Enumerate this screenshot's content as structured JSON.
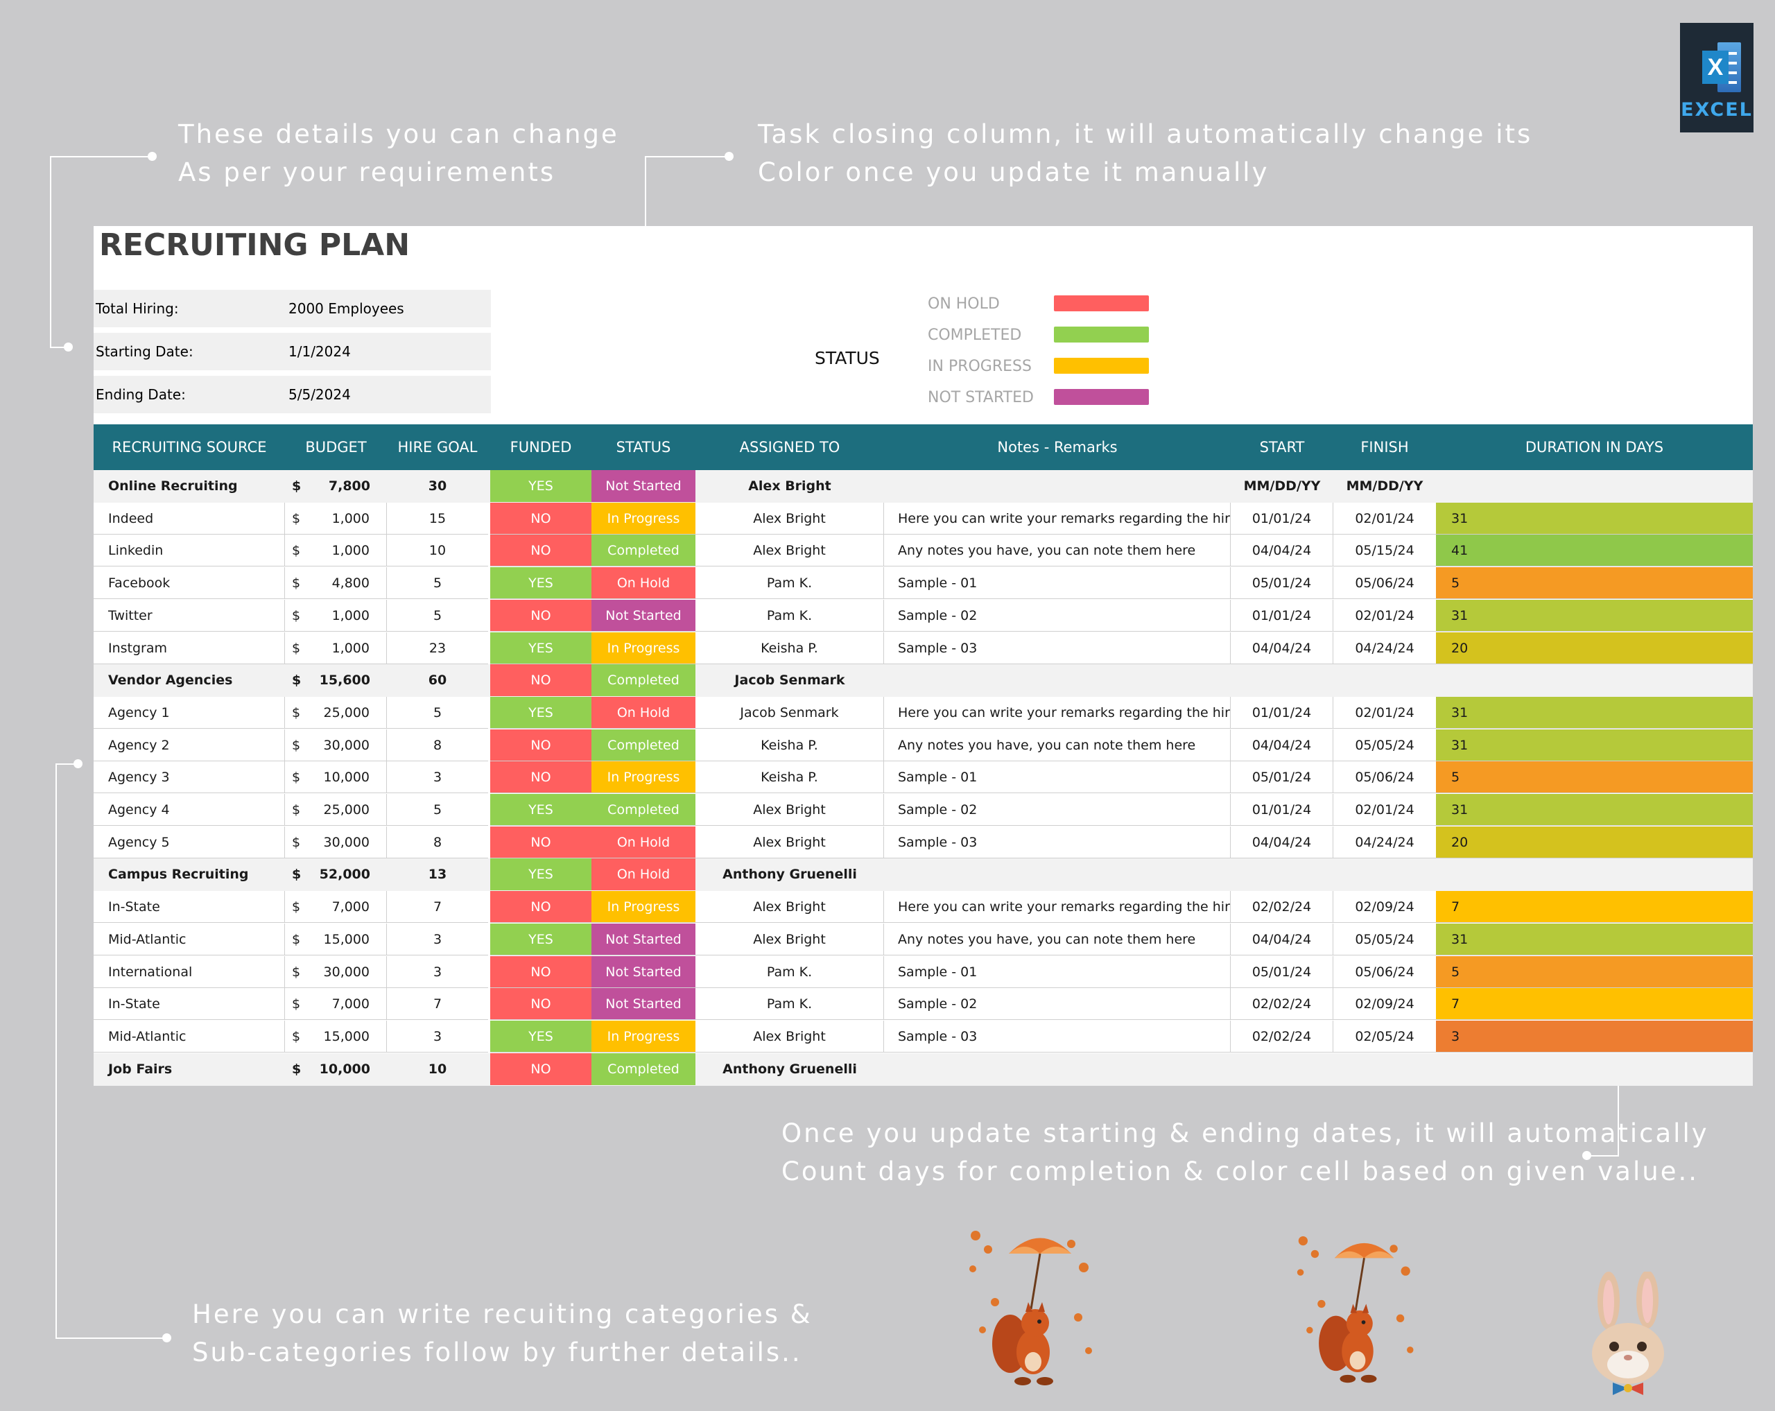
{
  "annotations": {
    "top_left": "These details you can change\nAs per your requirements",
    "top_right": "Task closing column, it will automatically change its\nColor once you update it manually",
    "bottom_right": "Once you update starting & ending dates, it will automatically\nCount days for completion & color cell based on given value..",
    "bottom_left": "Here you can write recuiting categories &\nSub-categories follow by further details.."
  },
  "logo": {
    "letter": "X",
    "label": "EXCEL",
    "icon": "excel-icon"
  },
  "sheet": {
    "title": "RECRUITING PLAN",
    "info": [
      {
        "label": "Total Hiring:",
        "value": "2000 Employees"
      },
      {
        "label": "Starting Date:",
        "value": "1/1/2024"
      },
      {
        "label": "Ending Date:",
        "value": "5/5/2024"
      }
    ],
    "status_title": "STATUS",
    "legend": [
      {
        "label": "ON HOLD",
        "color": "#ff5f5f"
      },
      {
        "label": "COMPLETED",
        "color": "#92d050"
      },
      {
        "label": "IN PROGRESS",
        "color": "#ffc000"
      },
      {
        "label": "NOT STARTED",
        "color": "#c0509b"
      }
    ]
  },
  "columns": {
    "source": "RECRUITING SOURCE",
    "budget": "BUDGET",
    "hire_goal": "HIRE GOAL",
    "funded": "FUNDED",
    "status": "STATUS",
    "assigned": "ASSIGNED TO",
    "notes": "Notes - Remarks",
    "start": "START",
    "finish": "FINISH",
    "duration": "DURATION IN DAYS"
  },
  "colors": {
    "header": "#1d6e7e",
    "funded_yes": "#92d050",
    "funded_no": "#ff5f5f",
    "status_text_dark": "#ffffff"
  },
  "rows": [
    {
      "type": "group",
      "source": "Online Recruiting",
      "dollar": "$",
      "budget": "7,800",
      "hire_goal": "30",
      "funded": "YES",
      "status": "Not Started",
      "assigned": "Alex Bright",
      "notes": "",
      "start": "MM/DD/YY",
      "finish": "MM/DD/YY",
      "duration": ""
    },
    {
      "type": "sub",
      "source": "Indeed",
      "dollar": "$",
      "budget": "1,000",
      "hire_goal": "15",
      "funded": "NO",
      "status": "In Progress",
      "assigned": "Alex Bright",
      "notes": "Here you can write your remarks regarding the hiring",
      "start": "01/01/24",
      "finish": "02/01/24",
      "duration": "31",
      "dur_color": "#b5c93a"
    },
    {
      "type": "sub",
      "source": "Linkedin",
      "dollar": "$",
      "budget": "1,000",
      "hire_goal": "10",
      "funded": "NO",
      "status": "Completed",
      "assigned": "Alex Bright",
      "notes": "Any notes you have, you can note them here",
      "start": "04/04/24",
      "finish": "05/15/24",
      "duration": "41",
      "dur_color": "#8fc84a"
    },
    {
      "type": "sub",
      "source": "Facebook",
      "dollar": "$",
      "budget": "4,800",
      "hire_goal": "5",
      "funded": "YES",
      "status": "On Hold",
      "assigned": "Pam K.",
      "notes": "Sample - 01",
      "start": "05/01/24",
      "finish": "05/06/24",
      "duration": "5",
      "dur_color": "#f59a23"
    },
    {
      "type": "sub",
      "source": "Twitter",
      "dollar": "$",
      "budget": "1,000",
      "hire_goal": "5",
      "funded": "NO",
      "status": "Not Started",
      "assigned": "Pam K.",
      "notes": "Sample - 02",
      "start": "01/01/24",
      "finish": "02/01/24",
      "duration": "31",
      "dur_color": "#b5c93a"
    },
    {
      "type": "sub",
      "source": "Instgram",
      "dollar": "$",
      "budget": "1,000",
      "hire_goal": "23",
      "funded": "YES",
      "status": "In Progress",
      "assigned": "Keisha P.",
      "notes": "Sample - 03",
      "start": "04/04/24",
      "finish": "04/24/24",
      "duration": "20",
      "dur_color": "#d4c21e"
    },
    {
      "type": "group",
      "source": "Vendor Agencies",
      "dollar": "$",
      "budget": "15,600",
      "hire_goal": "60",
      "funded": "NO",
      "status": "Completed",
      "assigned": "Jacob Senmark",
      "notes": "",
      "start": "",
      "finish": "",
      "duration": ""
    },
    {
      "type": "sub",
      "source": "Agency 1",
      "dollar": "$",
      "budget": "25,000",
      "hire_goal": "5",
      "funded": "YES",
      "status": "On Hold",
      "assigned": "Jacob Senmark",
      "notes": "Here you can write your remarks regarding the hiring",
      "start": "01/01/24",
      "finish": "02/01/24",
      "duration": "31",
      "dur_color": "#b5c93a"
    },
    {
      "type": "sub",
      "source": "Agency 2",
      "dollar": "$",
      "budget": "30,000",
      "hire_goal": "8",
      "funded": "NO",
      "status": "Completed",
      "assigned": "Keisha P.",
      "notes": "Any notes you have, you can note them here",
      "start": "04/04/24",
      "finish": "05/05/24",
      "duration": "31",
      "dur_color": "#b5c93a"
    },
    {
      "type": "sub",
      "source": "Agency 3",
      "dollar": "$",
      "budget": "10,000",
      "hire_goal": "3",
      "funded": "NO",
      "status": "In Progress",
      "assigned": "Keisha P.",
      "notes": "Sample - 01",
      "start": "05/01/24",
      "finish": "05/06/24",
      "duration": "5",
      "dur_color": "#f59a23"
    },
    {
      "type": "sub",
      "source": "Agency 4",
      "dollar": "$",
      "budget": "25,000",
      "hire_goal": "5",
      "funded": "YES",
      "status": "Completed",
      "assigned": "Alex Bright",
      "notes": "Sample - 02",
      "start": "01/01/24",
      "finish": "02/01/24",
      "duration": "31",
      "dur_color": "#b5c93a"
    },
    {
      "type": "sub",
      "source": "Agency 5",
      "dollar": "$",
      "budget": "30,000",
      "hire_goal": "8",
      "funded": "NO",
      "status": "On Hold",
      "assigned": "Alex Bright",
      "notes": "Sample - 03",
      "start": "04/04/24",
      "finish": "04/24/24",
      "duration": "20",
      "dur_color": "#d4c21e"
    },
    {
      "type": "group",
      "source": "Campus Recruiting",
      "dollar": "$",
      "budget": "52,000",
      "hire_goal": "13",
      "funded": "YES",
      "status": "On Hold",
      "assigned": "Anthony Gruenelli",
      "notes": "",
      "start": "",
      "finish": "",
      "duration": ""
    },
    {
      "type": "sub",
      "source": "In-State",
      "dollar": "$",
      "budget": "7,000",
      "hire_goal": "7",
      "funded": "NO",
      "status": "In Progress",
      "assigned": "Alex Bright",
      "notes": "Here you can write your remarks regarding the hiring",
      "start": "02/02/24",
      "finish": "02/09/24",
      "duration": "7",
      "dur_color": "#ffc000"
    },
    {
      "type": "sub",
      "source": "Mid-Atlantic",
      "dollar": "$",
      "budget": "15,000",
      "hire_goal": "3",
      "funded": "YES",
      "status": "Not Started",
      "assigned": "Alex Bright",
      "notes": "Any notes you have, you can note them here",
      "start": "04/04/24",
      "finish": "05/05/24",
      "duration": "31",
      "dur_color": "#b5c93a"
    },
    {
      "type": "sub",
      "source": "International",
      "dollar": "$",
      "budget": "30,000",
      "hire_goal": "3",
      "funded": "NO",
      "status": "Not Started",
      "assigned": "Pam K.",
      "notes": "Sample - 01",
      "start": "05/01/24",
      "finish": "05/06/24",
      "duration": "5",
      "dur_color": "#f59a23"
    },
    {
      "type": "sub",
      "source": "In-State",
      "dollar": "$",
      "budget": "7,000",
      "hire_goal": "7",
      "funded": "NO",
      "status": "Not Started",
      "assigned": "Pam K.",
      "notes": "Sample - 02",
      "start": "02/02/24",
      "finish": "02/09/24",
      "duration": "7",
      "dur_color": "#ffc000"
    },
    {
      "type": "sub",
      "source": "Mid-Atlantic",
      "dollar": "$",
      "budget": "15,000",
      "hire_goal": "3",
      "funded": "YES",
      "status": "In Progress",
      "assigned": "Alex Bright",
      "notes": "Sample - 03",
      "start": "02/02/24",
      "finish": "02/05/24",
      "duration": "3",
      "dur_color": "#ed7d31"
    },
    {
      "type": "group",
      "source": "Job Fairs",
      "dollar": "$",
      "budget": "10,000",
      "hire_goal": "10",
      "funded": "NO",
      "status": "Completed",
      "assigned": "Anthony Gruenelli",
      "notes": "",
      "start": "",
      "finish": "",
      "duration": ""
    }
  ],
  "illustrations": [
    {
      "name": "squirrel-umbrella-illustration"
    },
    {
      "name": "squirrel-umbrella-illustration"
    },
    {
      "name": "bunny-bowtie-illustration"
    }
  ]
}
